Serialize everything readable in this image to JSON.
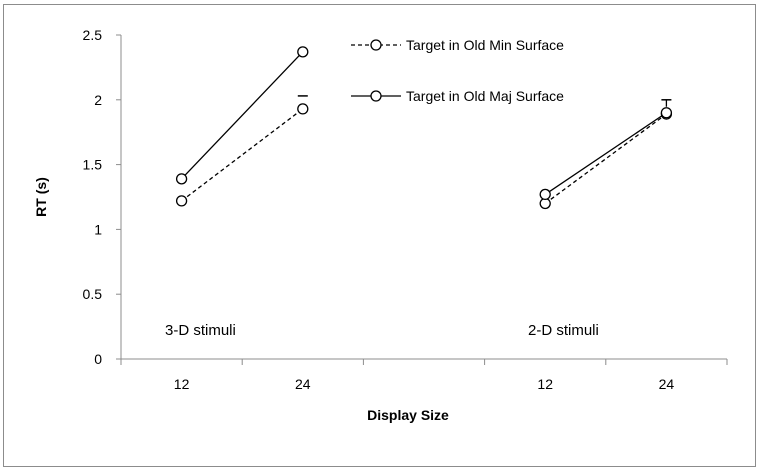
{
  "chart_data": {
    "type": "line",
    "xlabel": "Display Size",
    "ylabel": "RT (s)",
    "ylim": [
      0,
      2.5
    ],
    "yticks": [
      "0",
      "0.5",
      "1",
      "1.5",
      "2",
      "2.5"
    ],
    "categories": [
      "12",
      "24",
      "",
      "12",
      "24"
    ],
    "grid": false,
    "legend_position": "top-center",
    "annotations": [
      "3-D stimuli",
      "2-D stimuli"
    ],
    "series": [
      {
        "name": "Target in Old Min Surface",
        "style": "dashed",
        "color": "#000000",
        "groups": [
          {
            "points": [
              {
                "x": "12",
                "y": 1.22
              },
              {
                "x": "24",
                "y": 1.93
              }
            ]
          },
          {
            "points": [
              {
                "x": "12",
                "y": 1.2
              },
              {
                "x": "24",
                "y": 1.89
              }
            ]
          }
        ]
      },
      {
        "name": "Target in Old Maj Surface",
        "style": "solid",
        "color": "#000000",
        "groups": [
          {
            "points": [
              {
                "x": "12",
                "y": 1.39
              },
              {
                "x": "24",
                "y": 2.37
              }
            ]
          },
          {
            "points": [
              {
                "x": "12",
                "y": 1.27
              },
              {
                "x": "24",
                "y": 1.9
              }
            ]
          }
        ]
      }
    ],
    "error_bars": [
      {
        "group": 0,
        "x": "24",
        "y_top": 2.03
      },
      {
        "group": 1,
        "x": "24",
        "y_top": 2.0
      }
    ]
  }
}
